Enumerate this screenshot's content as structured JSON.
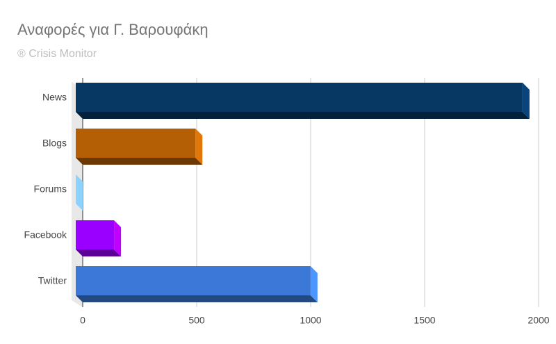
{
  "chart_data": {
    "type": "bar",
    "orientation": "horizontal",
    "title": "Αναφορές για Γ. Βαρουφάκη",
    "subtitle": "® Crisis Monitor",
    "categories": [
      "News",
      "Blogs",
      "Forums",
      "Facebook",
      "Twitter"
    ],
    "values": [
      1960,
      525,
      0,
      168,
      1030
    ],
    "colors": [
      "#073763",
      "#b45f06",
      "#6fa8dc",
      "#9900ff",
      "#3c78d8"
    ],
    "xlim": [
      0,
      2000
    ],
    "xticks": [
      0,
      500,
      1000,
      1500,
      2000
    ],
    "grid": true
  }
}
